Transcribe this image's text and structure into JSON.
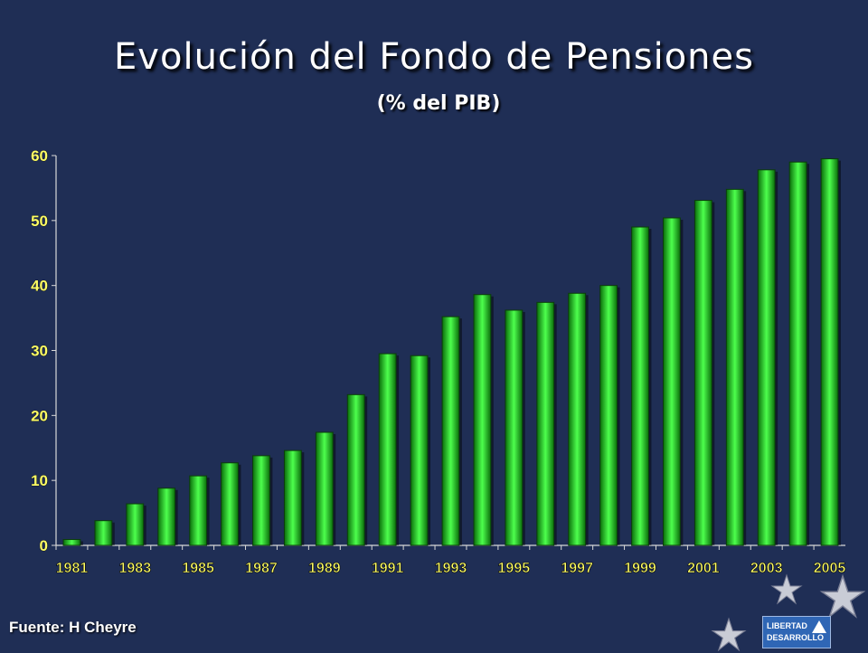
{
  "title": "Evolución del Fondo de Pensiones",
  "subtitle": "(% del PIB)",
  "source": "Fuente: H Cheyre",
  "logo": {
    "line1": "LIBERTAD",
    "line2": "DESARROLLO"
  },
  "colors": {
    "background": "#1f2e55",
    "bar": "#1ec81e",
    "bar_highlight": "#4dff4d",
    "tick_label": "#ffff66"
  },
  "chart_data": {
    "type": "bar",
    "categories": [
      "1981",
      "1982",
      "1983",
      "1984",
      "1985",
      "1986",
      "1987",
      "1988",
      "1989",
      "1990",
      "1991",
      "1992",
      "1993",
      "1994",
      "1995",
      "1996",
      "1997",
      "1998",
      "1999",
      "2000",
      "2001",
      "2002",
      "2003",
      "2004",
      "2005"
    ],
    "x_tick_labels": [
      "1981",
      "1983",
      "1985",
      "1987",
      "1989",
      "1991",
      "1993",
      "1995",
      "1997",
      "1999",
      "2001",
      "2003",
      "2005"
    ],
    "values": [
      0.9,
      3.8,
      6.4,
      8.8,
      10.7,
      12.7,
      13.8,
      14.6,
      17.4,
      23.2,
      29.5,
      29.2,
      35.2,
      38.6,
      36.2,
      37.4,
      38.8,
      40.0,
      49.0,
      50.4,
      53.1,
      54.8,
      57.8,
      59.0,
      59.5
    ],
    "title": "Evolución del Fondo de Pensiones",
    "subtitle": "(% del PIB)",
    "xlabel": "",
    "ylabel": "",
    "ylim": [
      0,
      60
    ],
    "yticks": [
      0,
      10,
      20,
      30,
      40,
      50,
      60
    ],
    "grid": false,
    "legend": "none"
  }
}
